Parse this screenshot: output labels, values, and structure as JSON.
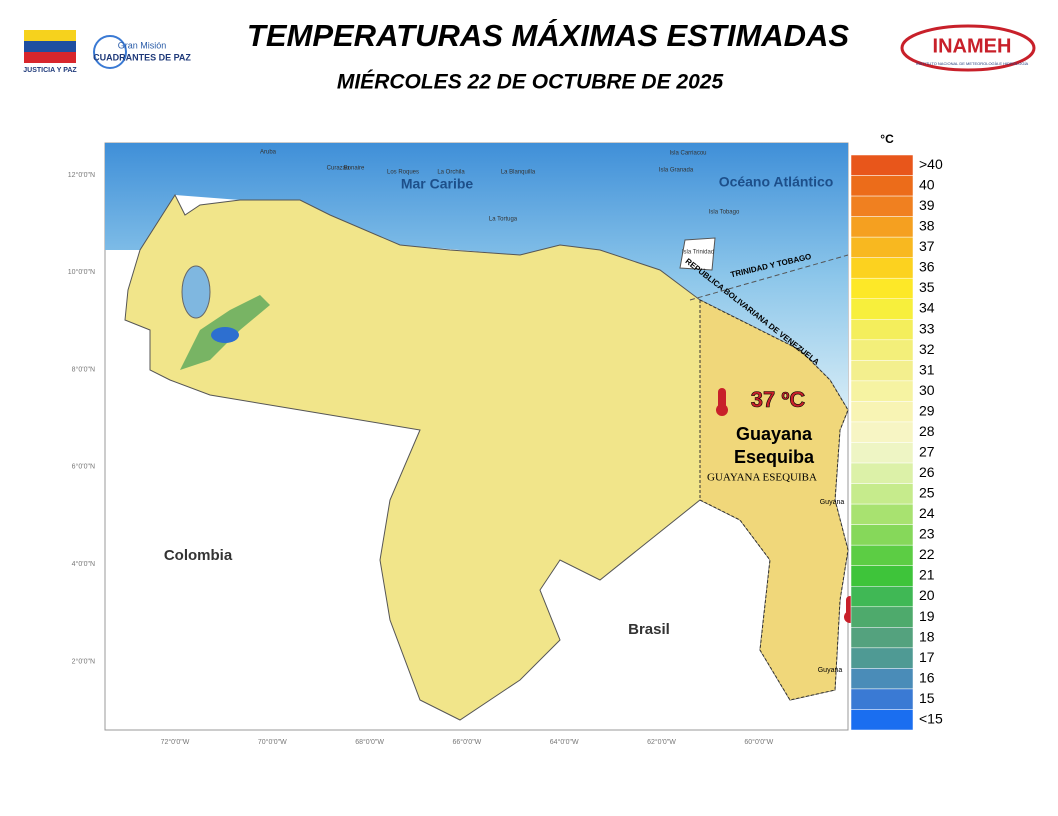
{
  "header": {
    "title": "TEMPERATURAS MÁXIMAS ESTIMADAS",
    "subtitle": "MIÉRCOLES 22 DE OCTUBRE DE 2025",
    "logos": {
      "left_caption": "JUSTICIA Y PAZ",
      "mission_top": "Gran Misión",
      "mission_bottom": "CUADRANTES DE PAZ",
      "inameh": "INAMEH",
      "inameh_caption": "INSTITUTO NACIONAL DE METEOROLOGÍA E HIDROLOGÍA"
    }
  },
  "map": {
    "sea_labels": [
      "Mar Caribe",
      "Océano Atlántico"
    ],
    "country_labels": [
      "Colombia",
      "Brasil",
      "Guyana",
      "Guyana"
    ],
    "border_labels": [
      "TRINIDAD Y TOBAGO",
      "REPÚBLICA BOLIVARIANA DE VENEZUELA",
      "GUAYANA ESEQUIBA"
    ],
    "island_labels": [
      "Aruba",
      "Curazao",
      "Bonaire",
      "Los Roques",
      "La Orchila",
      "La Blanquilla",
      "La Tortuga",
      "Isla Carriacou",
      "Isla Granada",
      "Isla Tobago",
      "Isla Trinidad"
    ],
    "annotation": {
      "value": "37 ºC",
      "region": "Guayana",
      "region2": "Esequiba"
    },
    "lat_labels": [
      "12°0'0\"N",
      "10°0'0\"N",
      "8°0'0\"N",
      "6°0'0\"N",
      "4°0'0\"N",
      "2°0'0\"N"
    ],
    "lon_labels": [
      "72°0'0\"W",
      "70°0'0\"W",
      "68°0'0\"W",
      "66°0'0\"W",
      "64°0'0\"W",
      "62°0'0\"W",
      "60°0'0\"W"
    ]
  },
  "legend": {
    "unit": "°C",
    "items": [
      {
        "label": ">40",
        "color": "#e8561b"
      },
      {
        "label": "40",
        "color": "#ec6c1a"
      },
      {
        "label": "39",
        "color": "#f08020"
      },
      {
        "label": "38",
        "color": "#f5a020"
      },
      {
        "label": "37",
        "color": "#f8b820"
      },
      {
        "label": "36",
        "color": "#fcd21f"
      },
      {
        "label": "35",
        "color": "#fde828"
      },
      {
        "label": "34",
        "color": "#f7ef3c"
      },
      {
        "label": "33",
        "color": "#f4ee5c"
      },
      {
        "label": "32",
        "color": "#f3ef7a"
      },
      {
        "label": "31",
        "color": "#f3ef8e"
      },
      {
        "label": "30",
        "color": "#f6f3a2"
      },
      {
        "label": "29",
        "color": "#f8f4b4"
      },
      {
        "label": "28",
        "color": "#f7f5c4"
      },
      {
        "label": "27",
        "color": "#eef5c4"
      },
      {
        "label": "26",
        "color": "#dcf1a8"
      },
      {
        "label": "25",
        "color": "#c6eb8c"
      },
      {
        "label": "24",
        "color": "#a8e270"
      },
      {
        "label": "23",
        "color": "#86d85a"
      },
      {
        "label": "22",
        "color": "#5ccd44"
      },
      {
        "label": "21",
        "color": "#3ec43a"
      },
      {
        "label": "20",
        "color": "#40b855"
      },
      {
        "label": "19",
        "color": "#4eaa6c"
      },
      {
        "label": "18",
        "color": "#54a27e"
      },
      {
        "label": "17",
        "color": "#4f9a94"
      },
      {
        "label": "16",
        "color": "#4a8cb8"
      },
      {
        "label": "15",
        "color": "#3a7ad4"
      },
      {
        "label": "<15",
        "color": "#1a6ef0"
      }
    ]
  }
}
